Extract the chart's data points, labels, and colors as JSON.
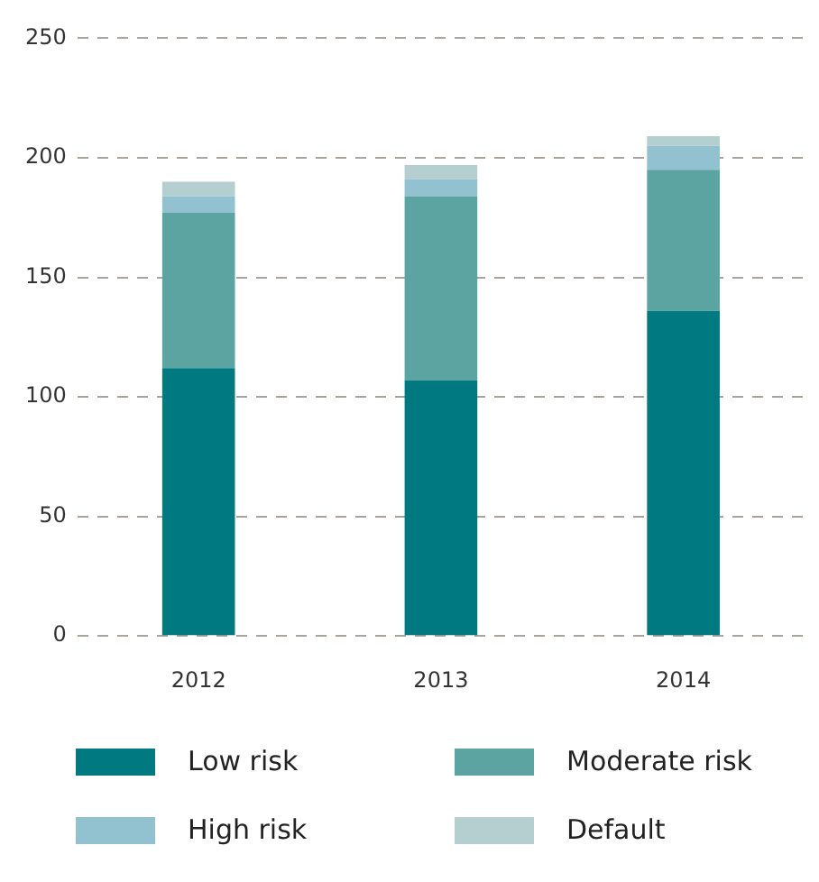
{
  "chart_data": {
    "type": "bar",
    "stacked": true,
    "categories": [
      "2012",
      "2013",
      "2014"
    ],
    "series": [
      {
        "name": "Low risk",
        "color": "#007a80",
        "values": [
          112,
          107,
          136
        ]
      },
      {
        "name": "Moderate risk",
        "color": "#5ba4a2",
        "values": [
          65,
          77,
          59
        ]
      },
      {
        "name": "High risk",
        "color": "#92c2cf",
        "values": [
          7,
          7,
          10
        ]
      },
      {
        "name": "Default",
        "color": "#b5cfd0",
        "values": [
          6,
          6,
          4
        ]
      }
    ],
    "ylim": [
      0,
      250
    ],
    "yticks": [
      0,
      50,
      100,
      150,
      200,
      250
    ],
    "grid": "y",
    "legend": "bottom"
  }
}
